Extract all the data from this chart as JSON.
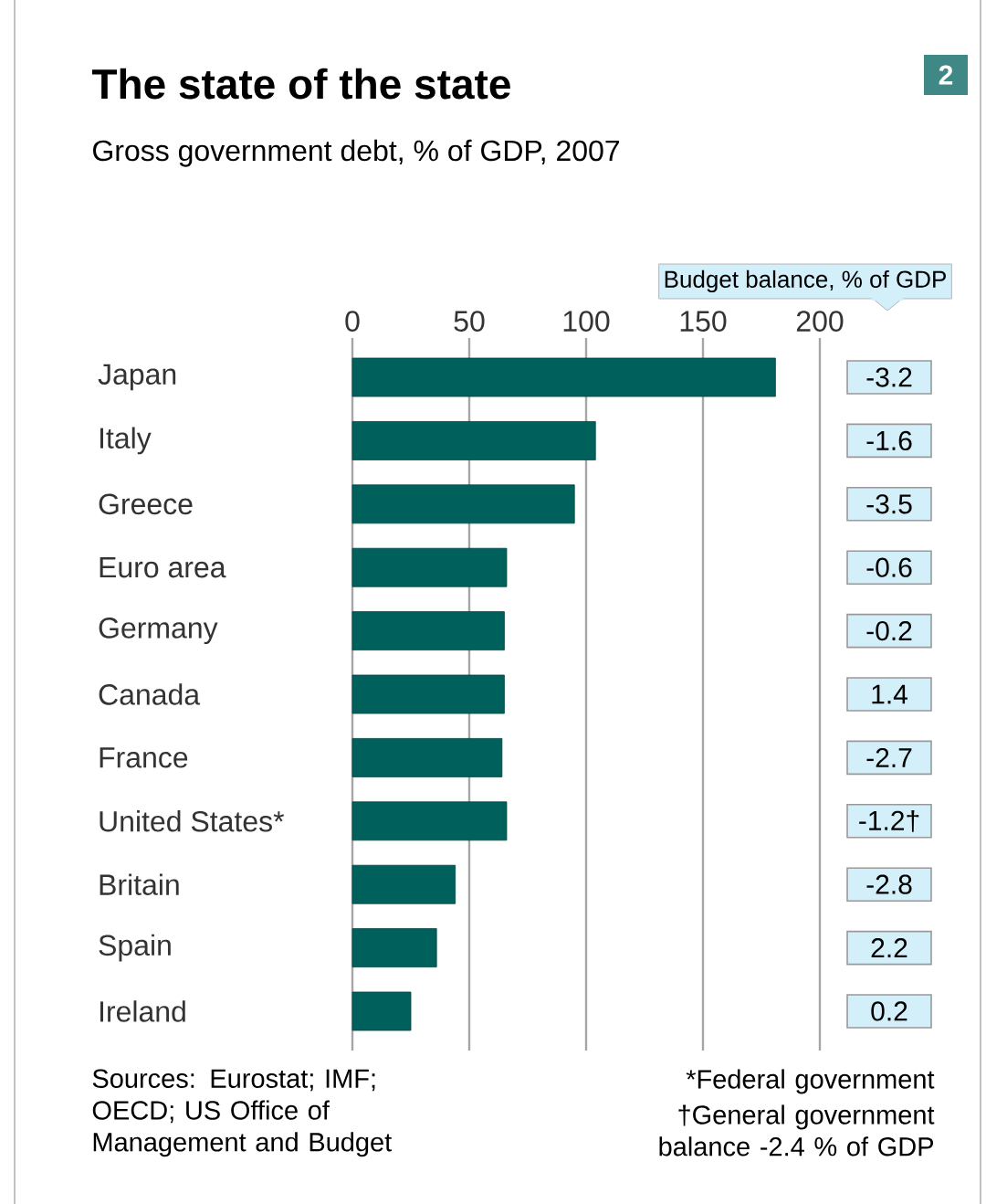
{
  "chart_data": [
    {
      "type": "bar",
      "orientation": "horizontal",
      "title": "The state of the state",
      "subtitle": "Gross government debt, % of GDP, 2007",
      "categories": [
        "Japan",
        "Italy",
        "Greece",
        "Euro area",
        "Germany",
        "Canada",
        "France",
        "United States*",
        "Britain",
        "Spain",
        "Ireland"
      ],
      "values": [
        181,
        104,
        95,
        66,
        65,
        65,
        64,
        66,
        44,
        36,
        25
      ],
      "color": "#00605c",
      "xlim": [
        0,
        200
      ],
      "xticks": [
        0,
        50,
        100,
        150,
        200
      ],
      "grid": "x",
      "annotations": [
        "2",
        "Sources: Eurostat; IMF; OECD; US Office of Management and Budget",
        "*Federal government",
        "†General government balance -2.4 % of GDP"
      ]
    },
    {
      "type": "other",
      "title": "Budget balance, % of GDP",
      "categories": [
        null,
        null,
        null,
        null,
        null,
        null,
        null,
        null,
        null,
        null,
        null
      ],
      "values": [
        -3.2,
        -1.6,
        -3.5,
        -0.6,
        -0.2,
        1.4,
        -2.7,
        -1.2,
        -2.8,
        2.2,
        0.2
      ],
      "value_labels": [
        "-3.2",
        "-1.6",
        "-3.5",
        "-0.6",
        "-0.2",
        "1.4",
        "-2.7",
        "-1.2†",
        "-2.8",
        "2.2",
        "0.2"
      ],
      "color": "#d2effa"
    }
  ]
}
